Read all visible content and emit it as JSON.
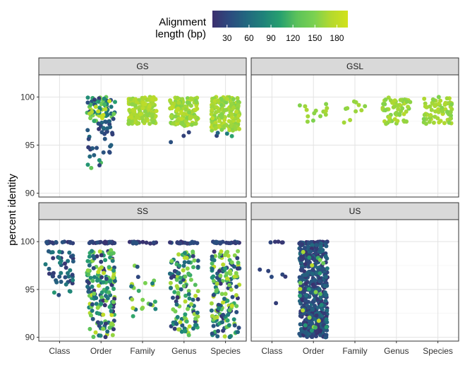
{
  "chart_data": {
    "type": "scatter",
    "subtype": "faceted jitter (strip) plot",
    "legend": {
      "title_line1": "Alignment",
      "title_line2": "length (bp)",
      "ticks": [
        "30",
        "60",
        "90",
        "120",
        "150",
        "180"
      ],
      "tick_values": [
        30,
        60,
        90,
        120,
        150,
        180
      ],
      "range": [
        10,
        195
      ],
      "placement": "top",
      "colormap": "viridis",
      "colors": [
        "#3b2f6e",
        "#2c4a7f",
        "#22677f",
        "#1f827a",
        "#27a06f",
        "#5cc25a",
        "#7ad151",
        "#b4d92e",
        "#d2e21b"
      ]
    },
    "ylabel": "percent identity",
    "xlabel": "",
    "categories": [
      "Class",
      "Order",
      "Family",
      "Genus",
      "Species"
    ],
    "yticks": [
      "90",
      "95",
      "100"
    ],
    "ylim": [
      89.6,
      102.3
    ],
    "grid": true,
    "panels": [
      {
        "name": "GS",
        "series": [
          {
            "category": "Order",
            "clusters": [
              {
                "y_min": 97.5,
                "y_max": 100,
                "count": 75,
                "length_min": 15,
                "length_max": 190
              },
              {
                "y_min": 93.8,
                "y_max": 97.5,
                "count": 35,
                "length_min": 15,
                "length_max": 60
              },
              {
                "y_min": 92.5,
                "y_max": 93.5,
                "count": 5,
                "length_min": 20,
                "length_max": 130
              }
            ]
          },
          {
            "category": "Family",
            "clusters": [
              {
                "y_min": 97.2,
                "y_max": 100,
                "count": 150,
                "length_min": 155,
                "length_max": 180
              }
            ]
          },
          {
            "category": "Genus",
            "clusters": [
              {
                "y_min": 97,
                "y_max": 100,
                "count": 140,
                "length_min": 150,
                "length_max": 180
              },
              {
                "y_min": 94.3,
                "y_max": 96.5,
                "count": 3,
                "length_min": 20,
                "length_max": 40
              }
            ]
          },
          {
            "category": "Species",
            "clusters": [
              {
                "y_min": 96.5,
                "y_max": 100,
                "count": 180,
                "length_min": 150,
                "length_max": 180
              },
              {
                "y_min": 95.5,
                "y_max": 97,
                "count": 4,
                "length_min": 20,
                "length_max": 120
              }
            ]
          }
        ]
      },
      {
        "name": "GSL",
        "series": [
          {
            "category": "Order",
            "clusters": [
              {
                "y_min": 97.4,
                "y_max": 99.4,
                "count": 14,
                "length_min": 150,
                "length_max": 170
              }
            ]
          },
          {
            "category": "Family",
            "clusters": [
              {
                "y_min": 97.2,
                "y_max": 100,
                "count": 10,
                "length_min": 150,
                "length_max": 170
              }
            ]
          },
          {
            "category": "Genus",
            "clusters": [
              {
                "y_min": 97.2,
                "y_max": 100,
                "count": 65,
                "length_min": 150,
                "length_max": 175
              }
            ]
          },
          {
            "category": "Species",
            "clusters": [
              {
                "y_min": 97.2,
                "y_max": 100,
                "count": 70,
                "length_min": 150,
                "length_max": 175
              }
            ]
          }
        ]
      },
      {
        "name": "SS",
        "series": [
          {
            "category": "Class",
            "clusters": [
              {
                "y_min": 99.8,
                "y_max": 100,
                "count": 20,
                "length_min": 10,
                "length_max": 40
              },
              {
                "y_min": 95.5,
                "y_max": 99,
                "count": 45,
                "length_min": 10,
                "length_max": 80
              },
              {
                "y_min": 93.5,
                "y_max": 95,
                "count": 4,
                "length_min": 30,
                "length_max": 160
              }
            ]
          },
          {
            "category": "Order",
            "clusters": [
              {
                "y_min": 99.8,
                "y_max": 100,
                "count": 25,
                "length_min": 10,
                "length_max": 40
              },
              {
                "y_min": 90,
                "y_max": 99.2,
                "count": 170,
                "length_min": 10,
                "length_max": 185
              }
            ]
          },
          {
            "category": "Family",
            "clusters": [
              {
                "y_min": 99.8,
                "y_max": 100,
                "count": 20,
                "length_min": 10,
                "length_max": 40
              },
              {
                "y_min": 92,
                "y_max": 98,
                "count": 25,
                "length_min": 20,
                "length_max": 180
              }
            ]
          },
          {
            "category": "Genus",
            "clusters": [
              {
                "y_min": 99.8,
                "y_max": 100,
                "count": 20,
                "length_min": 10,
                "length_max": 40
              },
              {
                "y_min": 90.2,
                "y_max": 99,
                "count": 130,
                "length_min": 10,
                "length_max": 180
              }
            ]
          },
          {
            "category": "Species",
            "clusters": [
              {
                "y_min": 99.8,
                "y_max": 100,
                "count": 20,
                "length_min": 10,
                "length_max": 40
              },
              {
                "y_min": 90,
                "y_max": 99,
                "count": 170,
                "length_min": 10,
                "length_max": 185
              }
            ]
          }
        ]
      },
      {
        "name": "US",
        "series": [
          {
            "category": "Class",
            "clusters": [
              {
                "y_min": 99.9,
                "y_max": 100,
                "count": 5,
                "length_min": 15,
                "length_max": 30
              },
              {
                "y_min": 96.3,
                "y_max": 97.2,
                "count": 5,
                "length_min": 15,
                "length_max": 40
              },
              {
                "y_min": 93.5,
                "y_max": 93.6,
                "count": 1,
                "length_min": 20,
                "length_max": 25
              }
            ]
          },
          {
            "category": "Order",
            "clusters": [
              {
                "y_min": 99.8,
                "y_max": 100,
                "count": 40,
                "length_min": 10,
                "length_max": 40
              },
              {
                "y_min": 90,
                "y_max": 99.8,
                "count": 500,
                "length_min": 10,
                "length_max": 60
              },
              {
                "y_min": 90.5,
                "y_max": 99,
                "count": 25,
                "length_min": 60,
                "length_max": 185
              }
            ]
          }
        ]
      }
    ]
  }
}
